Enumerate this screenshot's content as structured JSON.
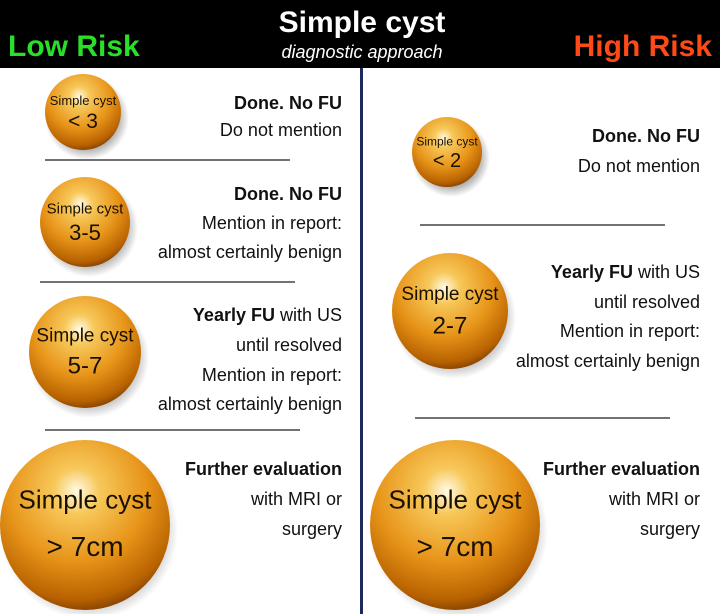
{
  "header": {
    "title": "Simple cyst",
    "subtitle": "diagnostic approach",
    "left_label": "Low Risk",
    "right_label": "High Risk"
  },
  "columns": [
    {
      "rows": [
        {
          "cyst": [
            "Simple cyst",
            "< 3"
          ],
          "lines": [
            {
              "bold": "Done. No FU"
            },
            {
              "text": "Do not mention"
            }
          ]
        },
        {
          "cyst": [
            "Simple cyst",
            "3-5"
          ],
          "lines": [
            {
              "bold": "Done. No FU"
            },
            {
              "text": "Mention in report:"
            },
            {
              "text": "almost certainly benign"
            }
          ]
        },
        {
          "cyst": [
            "Simple cyst",
            "5-7"
          ],
          "lines": [
            {
              "bold": "Yearly FU",
              "text": " with US"
            },
            {
              "text": "until resolved"
            },
            {
              "text": "Mention in report:"
            },
            {
              "text": "almost certainly benign"
            }
          ]
        },
        {
          "cyst": [
            "Simple cyst",
            "> 7cm"
          ],
          "lines": [
            {
              "bold": "Further evaluation"
            },
            {
              "text": "with MRI or"
            },
            {
              "text": "surgery"
            }
          ]
        }
      ]
    },
    {
      "rows": [
        {
          "cyst": [
            "Simple cyst",
            "< 2"
          ],
          "lines": [
            {
              "bold": "Done. No FU"
            },
            {
              "text": "Do not mention"
            }
          ]
        },
        {
          "cyst": [
            "Simple cyst",
            "2-7"
          ],
          "lines": [
            {
              "bold": "Yearly FU",
              "text": " with US"
            },
            {
              "text": "until resolved"
            },
            {
              "text": "Mention in report:"
            },
            {
              "text": "almost certainly benign"
            }
          ]
        },
        {
          "cyst": [
            "Simple cyst",
            "> 7cm"
          ],
          "lines": [
            {
              "bold": "Further evaluation"
            },
            {
              "text": "with MRI or"
            },
            {
              "text": "surgery"
            }
          ]
        }
      ]
    }
  ]
}
